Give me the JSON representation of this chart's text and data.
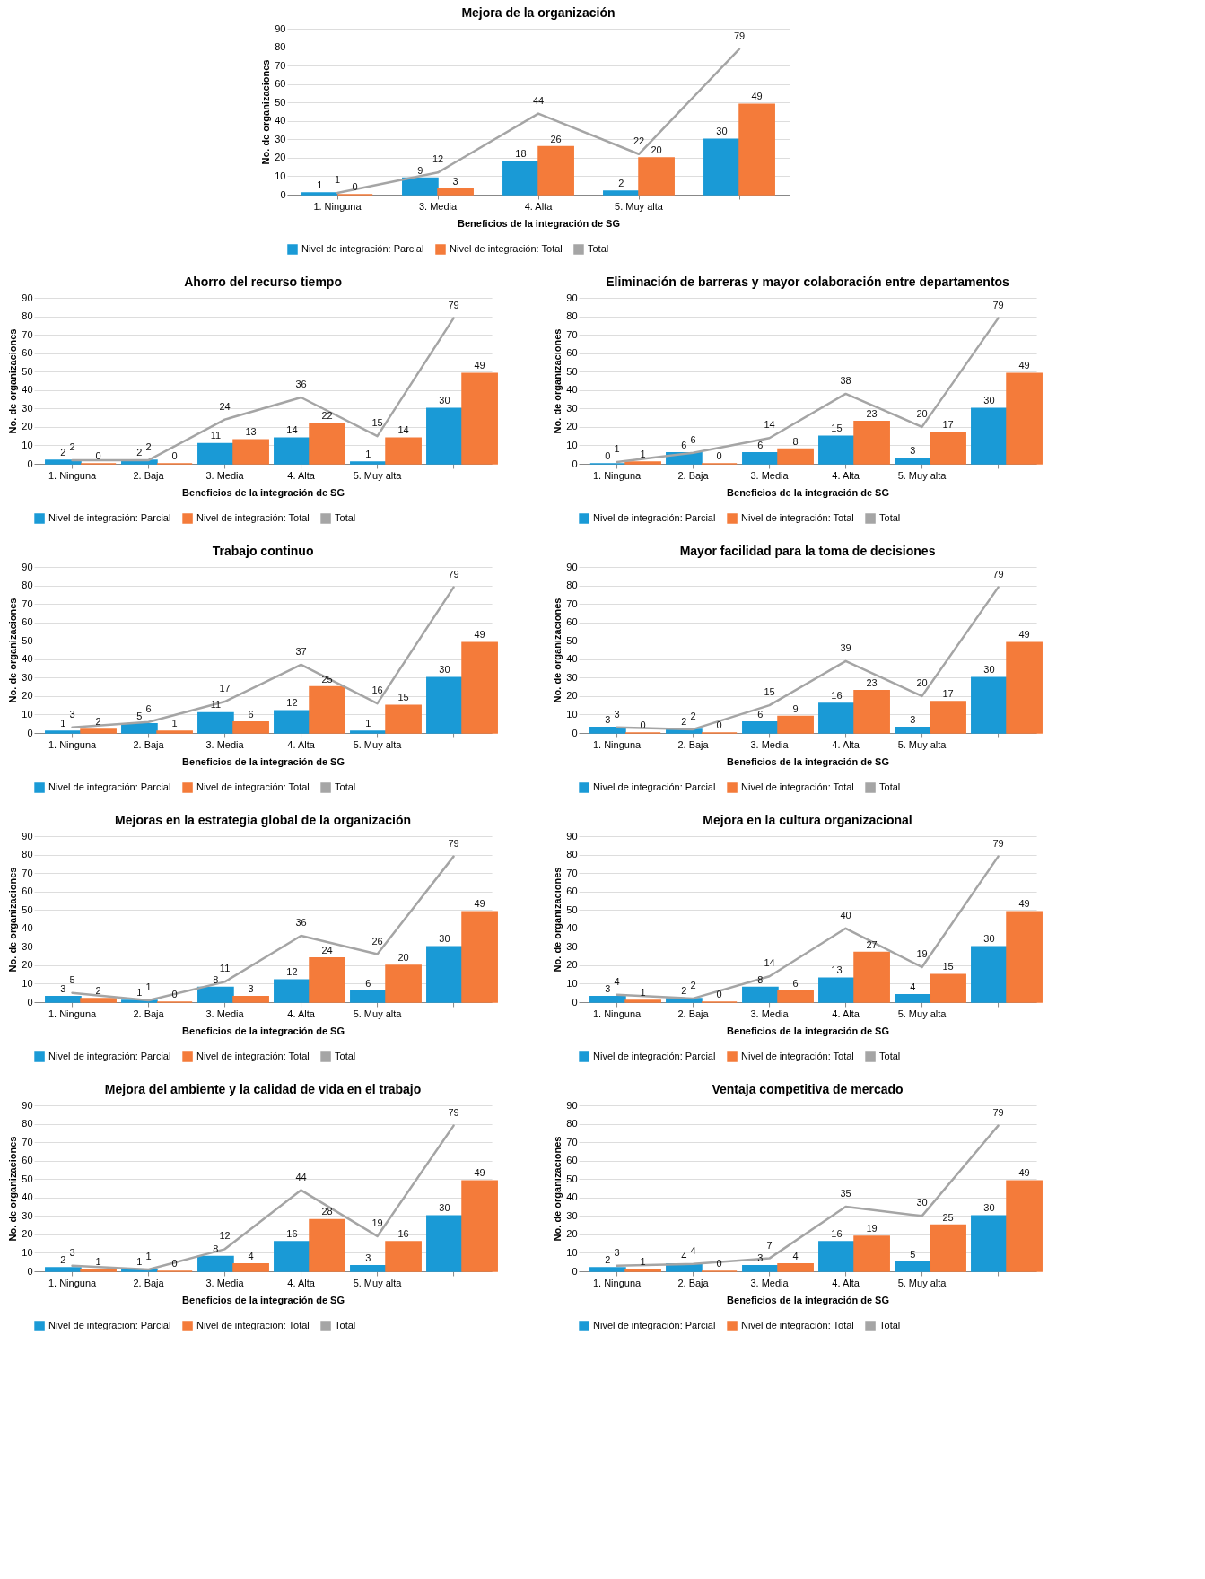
{
  "chart_data": [
    {
      "type": "bar",
      "title": "Mejora de la organización",
      "xlabel": "Beneficios de la integración de SG",
      "ylabel": "No. de organizaciones",
      "categories": [
        "1. Ninguna",
        "3. Media",
        "4. Alta",
        "5. Muy alta",
        null
      ],
      "ylim": [
        0,
        90
      ],
      "yticks": [
        0,
        10,
        20,
        30,
        40,
        50,
        60,
        70,
        80,
        90
      ],
      "grid": "y",
      "legend": "bottom",
      "data_labels": true,
      "series": [
        {
          "name": "Nivel de integración: Parcial",
          "color": "#1a9ad6",
          "values": [
            1,
            9,
            18,
            2,
            30
          ]
        },
        {
          "name": "Nivel de integración: Total",
          "color": "#f47b3a",
          "values": [
            0,
            3,
            26,
            20,
            49
          ]
        },
        {
          "name": "Total",
          "type": "line",
          "color": "#a5a5a5",
          "values": [
            1,
            12,
            44,
            22,
            79
          ]
        }
      ]
    },
    {
      "type": "bar",
      "title": "Ahorro del recurso tiempo",
      "xlabel": "Beneficios de la integración de SG",
      "ylabel": "No. de organizaciones",
      "categories": [
        "1. Ninguna",
        "2. Baja",
        "3. Media",
        "4. Alta",
        "5. Muy alta",
        null
      ],
      "ylim": [
        0,
        90
      ],
      "yticks": [
        0,
        10,
        20,
        30,
        40,
        50,
        60,
        70,
        80,
        90
      ],
      "grid": "y",
      "legend": "bottom",
      "data_labels": true,
      "series": [
        {
          "name": "Nivel de integración: Parcial",
          "color": "#1a9ad6",
          "values": [
            2,
            2,
            11,
            14,
            1,
            30
          ]
        },
        {
          "name": "Nivel de integración: Total",
          "color": "#f47b3a",
          "values": [
            0,
            0,
            13,
            22,
            14,
            49
          ]
        },
        {
          "name": "Total",
          "type": "line",
          "color": "#a5a5a5",
          "values": [
            2,
            2,
            24,
            36,
            15,
            79
          ]
        }
      ]
    },
    {
      "type": "bar",
      "title": "Eliminación de barreras y mayor colaboración entre departamentos",
      "xlabel": "Beneficios de la integración de SG",
      "ylabel": "No. de organizaciones",
      "categories": [
        "1. Ninguna",
        "2. Baja",
        "3. Media",
        "4. Alta",
        "5. Muy alta",
        null
      ],
      "ylim": [
        0,
        90
      ],
      "yticks": [
        0,
        10,
        20,
        30,
        40,
        50,
        60,
        70,
        80,
        90
      ],
      "grid": "y",
      "legend": "bottom",
      "data_labels": true,
      "series": [
        {
          "name": "Nivel de integración: Parcial",
          "color": "#1a9ad6",
          "values": [
            0,
            6,
            6,
            15,
            3,
            30
          ]
        },
        {
          "name": "Nivel de integración: Total",
          "color": "#f47b3a",
          "values": [
            1,
            0,
            8,
            23,
            17,
            49
          ]
        },
        {
          "name": "Total",
          "type": "line",
          "color": "#a5a5a5",
          "values": [
            1,
            6,
            14,
            38,
            20,
            79
          ]
        }
      ]
    },
    {
      "type": "bar",
      "title": "Trabajo continuo",
      "xlabel": "Beneficios de la integración de SG",
      "ylabel": "No. de organizaciones",
      "categories": [
        "1. Ninguna",
        "2. Baja",
        "3. Media",
        "4. Alta",
        "5. Muy alta",
        null
      ],
      "ylim": [
        0,
        90
      ],
      "yticks": [
        0,
        10,
        20,
        30,
        40,
        50,
        60,
        70,
        80,
        90
      ],
      "grid": "y",
      "legend": "bottom",
      "data_labels": true,
      "series": [
        {
          "name": "Nivel de integración: Parcial",
          "color": "#1a9ad6",
          "values": [
            1,
            5,
            11,
            12,
            1,
            30
          ]
        },
        {
          "name": "Nivel de integración: Total",
          "color": "#f47b3a",
          "values": [
            2,
            1,
            6,
            25,
            15,
            49
          ]
        },
        {
          "name": "Total",
          "type": "line",
          "color": "#a5a5a5",
          "values": [
            3,
            6,
            17,
            37,
            16,
            79
          ]
        }
      ]
    },
    {
      "type": "bar",
      "title": "Mayor facilidad para la toma de decisiones",
      "xlabel": "Beneficios de la integración de SG",
      "ylabel": "No. de organizaciones",
      "categories": [
        "1. Ninguna",
        "2. Baja",
        "3. Media",
        "4. Alta",
        "5. Muy alta",
        null
      ],
      "ylim": [
        0,
        90
      ],
      "yticks": [
        0,
        10,
        20,
        30,
        40,
        50,
        60,
        70,
        80,
        90
      ],
      "grid": "y",
      "legend": "bottom",
      "data_labels": true,
      "series": [
        {
          "name": "Nivel de integración: Parcial",
          "color": "#1a9ad6",
          "values": [
            3,
            2,
            6,
            16,
            3,
            30
          ]
        },
        {
          "name": "Nivel de integración: Total",
          "color": "#f47b3a",
          "values": [
            0,
            0,
            9,
            23,
            17,
            49
          ]
        },
        {
          "name": "Total",
          "type": "line",
          "color": "#a5a5a5",
          "values": [
            3,
            2,
            15,
            39,
            20,
            79
          ]
        }
      ]
    },
    {
      "type": "bar",
      "title": "Mejoras en la estrategia global de la organización",
      "xlabel": "Beneficios de la integración de SG",
      "ylabel": "No. de organizaciones",
      "categories": [
        "1. Ninguna",
        "2. Baja",
        "3. Media",
        "4. Alta",
        "5. Muy alta",
        null
      ],
      "ylim": [
        0,
        90
      ],
      "yticks": [
        0,
        10,
        20,
        30,
        40,
        50,
        60,
        70,
        80,
        90
      ],
      "grid": "y",
      "legend": "bottom",
      "data_labels": true,
      "series": [
        {
          "name": "Nivel de integración: Parcial",
          "color": "#1a9ad6",
          "values": [
            3,
            1,
            8,
            12,
            6,
            30
          ]
        },
        {
          "name": "Nivel de integración: Total",
          "color": "#f47b3a",
          "values": [
            2,
            0,
            3,
            24,
            20,
            49
          ]
        },
        {
          "name": "Total",
          "type": "line",
          "color": "#a5a5a5",
          "values": [
            5,
            1,
            11,
            36,
            26,
            79
          ]
        }
      ]
    },
    {
      "type": "bar",
      "title": "Mejora en la cultura organizacional",
      "xlabel": "Beneficios de la integración de SG",
      "ylabel": "No. de organizaciones",
      "categories": [
        "1. Ninguna",
        "2. Baja",
        "3. Media",
        "4. Alta",
        "5. Muy alta",
        null
      ],
      "ylim": [
        0,
        90
      ],
      "yticks": [
        0,
        10,
        20,
        30,
        40,
        50,
        60,
        70,
        80,
        90
      ],
      "grid": "y",
      "legend": "bottom",
      "data_labels": true,
      "series": [
        {
          "name": "Nivel de integración: Parcial",
          "color": "#1a9ad6",
          "values": [
            3,
            2,
            8,
            13,
            4,
            30
          ]
        },
        {
          "name": "Nivel de integración: Total",
          "color": "#f47b3a",
          "values": [
            1,
            0,
            6,
            27,
            15,
            49
          ]
        },
        {
          "name": "Total",
          "type": "line",
          "color": "#a5a5a5",
          "values": [
            4,
            2,
            14,
            40,
            19,
            79
          ]
        }
      ]
    },
    {
      "type": "bar",
      "title": "Mejora del ambiente y la calidad de vida en el trabajo",
      "xlabel": "Beneficios de la integración de SG",
      "ylabel": "No. de organizaciones",
      "categories": [
        "1. Ninguna",
        "2. Baja",
        "3. Media",
        "4. Alta",
        "5. Muy alta",
        null
      ],
      "ylim": [
        0,
        90
      ],
      "yticks": [
        0,
        10,
        20,
        30,
        40,
        50,
        60,
        70,
        80,
        90
      ],
      "grid": "y",
      "legend": "bottom",
      "data_labels": true,
      "series": [
        {
          "name": "Nivel de integración: Parcial",
          "color": "#1a9ad6",
          "values": [
            2,
            1,
            8,
            16,
            3,
            30
          ]
        },
        {
          "name": "Nivel de integración: Total",
          "color": "#f47b3a",
          "values": [
            1,
            0,
            4,
            28,
            16,
            49
          ]
        },
        {
          "name": "Total",
          "type": "line",
          "color": "#a5a5a5",
          "values": [
            3,
            1,
            12,
            44,
            19,
            79
          ]
        }
      ]
    },
    {
      "type": "bar",
      "title": "Ventaja competitiva de mercado",
      "xlabel": "Beneficios de la integración de SG",
      "ylabel": "No. de organizaciones",
      "categories": [
        "1. Ninguna",
        "2. Baja",
        "3. Media",
        "4. Alta",
        "5. Muy alta",
        null
      ],
      "ylim": [
        0,
        90
      ],
      "yticks": [
        0,
        10,
        20,
        30,
        40,
        50,
        60,
        70,
        80,
        90
      ],
      "grid": "y",
      "legend": "bottom",
      "data_labels": true,
      "series": [
        {
          "name": "Nivel de integración: Parcial",
          "color": "#1a9ad6",
          "values": [
            2,
            4,
            3,
            16,
            5,
            30
          ]
        },
        {
          "name": "Nivel de integración: Total",
          "color": "#f47b3a",
          "values": [
            1,
            0,
            4,
            19,
            25,
            49
          ]
        },
        {
          "name": "Total",
          "type": "line",
          "color": "#a5a5a5",
          "values": [
            3,
            4,
            7,
            35,
            30,
            79
          ]
        }
      ]
    }
  ]
}
